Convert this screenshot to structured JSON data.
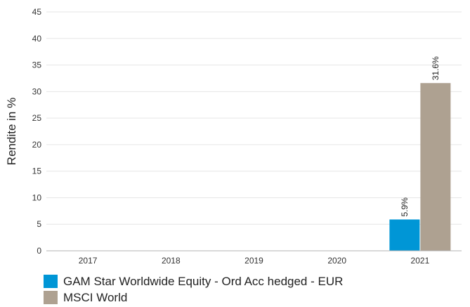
{
  "colors": {
    "grid": "#e6e6e6",
    "axis": "#b3b3b3"
  },
  "chart_data": {
    "type": "bar",
    "title": "",
    "xlabel": "",
    "ylabel": "Rendite in %",
    "ylim": [
      0,
      45
    ],
    "yticks": [
      0,
      5,
      10,
      15,
      20,
      25,
      30,
      35,
      40,
      45
    ],
    "grid": true,
    "legend_position": "bottom-left",
    "categories": [
      "2017",
      "2018",
      "2019",
      "2020",
      "2021"
    ],
    "series": [
      {
        "name": "GAM Star Worldwide Equity - Ord Acc hedged - EUR",
        "color": "#0096d6",
        "values": [
          null,
          null,
          null,
          null,
          5.9
        ],
        "labels": [
          null,
          null,
          null,
          null,
          "5.9%"
        ]
      },
      {
        "name": "MSCI World",
        "color": "#aea191",
        "values": [
          null,
          null,
          null,
          null,
          31.6
        ],
        "labels": [
          null,
          null,
          null,
          null,
          "31.6%"
        ]
      }
    ]
  }
}
